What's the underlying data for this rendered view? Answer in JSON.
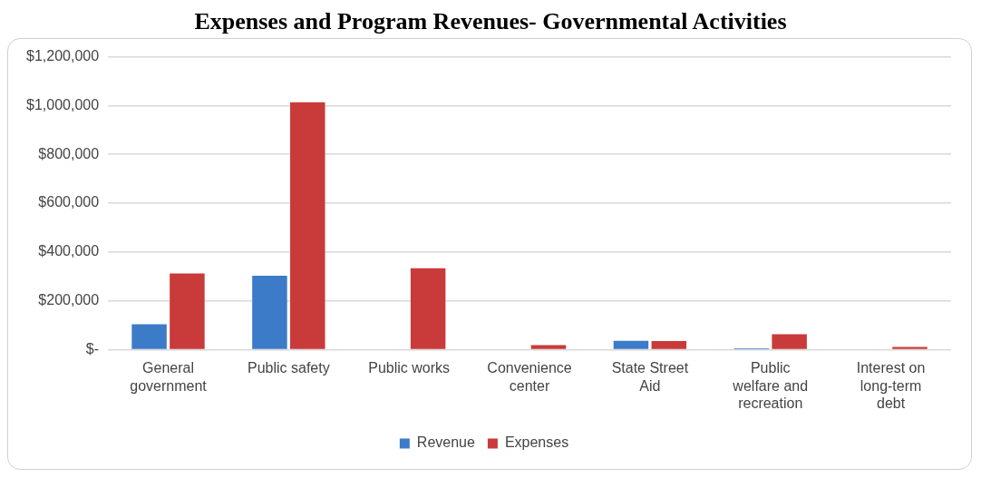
{
  "chart_data": {
    "type": "bar",
    "title": "Expenses and Program Revenues- Governmental Activities",
    "categories": [
      "General government",
      "Public safety",
      "Public works",
      "Convenience center",
      "State Street Aid",
      "Public welfare and recreation",
      "Interest on long-term debt"
    ],
    "series": [
      {
        "name": "Revenue",
        "color": "#3b7bc8",
        "values": [
          104000,
          303000,
          0,
          0,
          36000,
          5000,
          0
        ]
      },
      {
        "name": "Expenses",
        "color": "#c93a3a",
        "values": [
          312000,
          1014000,
          333000,
          18000,
          35000,
          63000,
          11000
        ]
      }
    ],
    "ylim": [
      0,
      1200000
    ],
    "yticks": [
      {
        "value": 0,
        "label": "$-"
      },
      {
        "value": 200000,
        "label": "$200,000"
      },
      {
        "value": 400000,
        "label": "$400,000"
      },
      {
        "value": 600000,
        "label": "$600,000"
      },
      {
        "value": 800000,
        "label": "$800,000"
      },
      {
        "value": 1000000,
        "label": "$1,000,000"
      },
      {
        "value": 1200000,
        "label": "$1,200,000"
      }
    ],
    "grid": "y",
    "legend": "bottom"
  }
}
